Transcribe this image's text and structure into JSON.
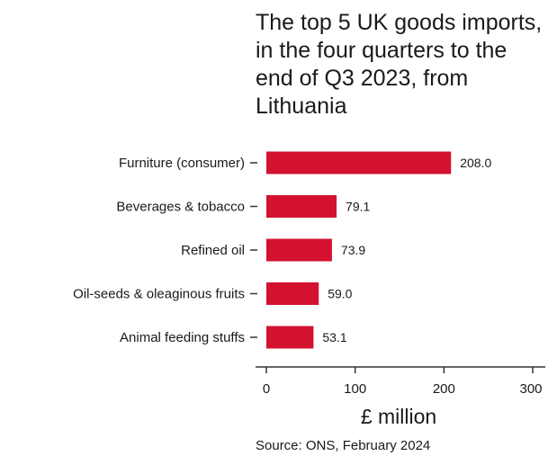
{
  "chart_data": {
    "type": "bar",
    "orientation": "horizontal",
    "title": "The top 5 UK goods imports, in the four quarters to the end of Q3 2023, from Lithuania",
    "categories": [
      "Furniture (consumer)",
      "Beverages & tobacco",
      "Refined oil",
      "Oil-seeds & oleaginous fruits",
      "Animal feeding stuffs"
    ],
    "values": [
      208.0,
      79.1,
      73.9,
      59.0,
      53.1
    ],
    "value_labels": [
      "208.0",
      "79.1",
      "73.9",
      "59.0",
      "53.1"
    ],
    "xlabel": "£ million",
    "xlim": [
      0,
      300
    ],
    "xticks": [
      0,
      100,
      200,
      300
    ],
    "bar_color": "#d4112f",
    "grid": false,
    "legend": "none",
    "source": "Source: ONS, February 2024"
  }
}
